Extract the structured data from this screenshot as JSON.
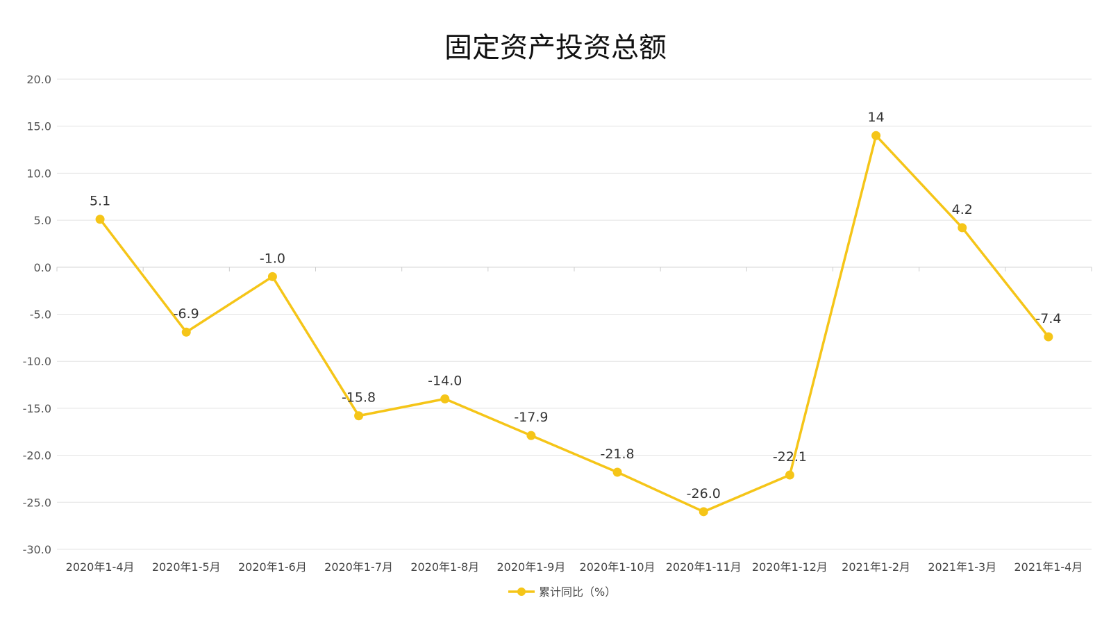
{
  "chart_data": {
    "type": "line",
    "title": "固定资产投资总额",
    "categories": [
      "2020年1-4月",
      "2020年1-5月",
      "2020年1-6月",
      "2020年1-7月",
      "2020年1-8月",
      "2020年1-9月",
      "2020年1-10月",
      "2020年1-11月",
      "2020年1-12月",
      "2021年1-2月",
      "2021年1-3月",
      "2021年1-4月"
    ],
    "series": [
      {
        "name": "累计同比（%）",
        "values": [
          5.1,
          -6.9,
          -1.0,
          -15.8,
          -14.0,
          -17.9,
          -21.8,
          -26.0,
          -22.1,
          14,
          4.2,
          -7.4
        ],
        "labels": [
          "5.1",
          "-6.9",
          "-1.0",
          "-15.8",
          "-14.0",
          "-17.9",
          "-21.8",
          "-26.0",
          "-22.1",
          "14",
          "4.2",
          "-7.4"
        ],
        "color": "#F5C518"
      }
    ],
    "y_ticks": [
      "20.0",
      "15.0",
      "10.0",
      "5.0",
      "0.0",
      "-5.0",
      "-10.0",
      "-15.0",
      "-20.0",
      "-25.0",
      "-30.0"
    ],
    "ylim": [
      -30,
      20
    ],
    "grid": true,
    "legend_position": "bottom-center"
  }
}
